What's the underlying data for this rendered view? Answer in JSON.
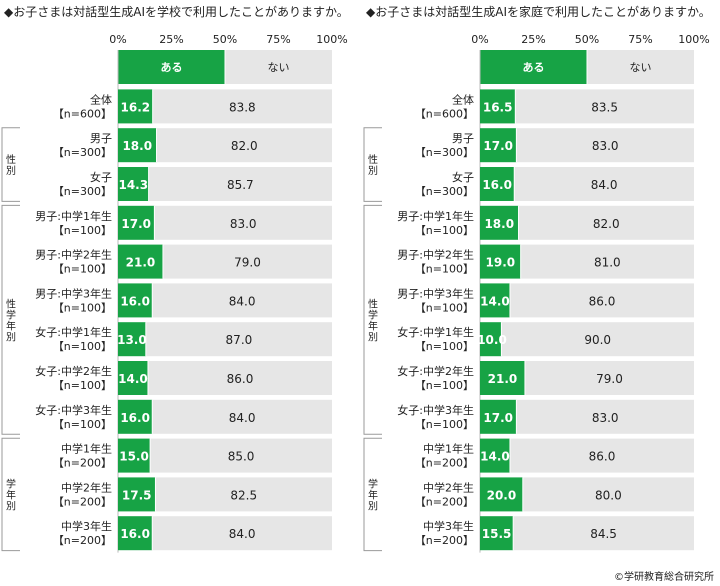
{
  "colors": {
    "aru": "#17a345",
    "nai": "#e6e6e6",
    "divider": "#ffffff",
    "frame": "#9a9a9a"
  },
  "source": "©学研教育総合研究所",
  "chart_data": [
    {
      "type": "bar",
      "stacked": "horizontal-100",
      "title": "◆お子さまは対話型生成AIを学校で利用したことがありますか。",
      "xlim": [
        0,
        100
      ],
      "ticks": [
        "0%",
        "25%",
        "50%",
        "75%",
        "100%"
      ],
      "legend": [
        "ある",
        "ない"
      ],
      "groups": [
        {
          "label": "",
          "rows": [
            0
          ]
        },
        {
          "label": "性別",
          "rows": [
            1,
            2
          ]
        },
        {
          "label": "性学年別",
          "rows": [
            3,
            4,
            5,
            6,
            7,
            8
          ]
        },
        {
          "label": "学年別",
          "rows": [
            9,
            10,
            11
          ]
        }
      ],
      "categories": [
        [
          "全体",
          "【n=600】"
        ],
        [
          "男子",
          "【n=300】"
        ],
        [
          "女子",
          "【n=300】"
        ],
        [
          "男子:中学1年生",
          "【n=100】"
        ],
        [
          "男子:中学2年生",
          "【n=100】"
        ],
        [
          "男子:中学3年生",
          "【n=100】"
        ],
        [
          "女子:中学1年生",
          "【n=100】"
        ],
        [
          "女子:中学2年生",
          "【n=100】"
        ],
        [
          "女子:中学3年生",
          "【n=100】"
        ],
        [
          "中学1年生",
          "【n=200】"
        ],
        [
          "中学2年生",
          "【n=200】"
        ],
        [
          "中学3年生",
          "【n=200】"
        ]
      ],
      "series": [
        {
          "name": "ある",
          "values": [
            16.2,
            18.0,
            14.3,
            17.0,
            21.0,
            16.0,
            13.0,
            14.0,
            16.0,
            15.0,
            17.5,
            16.0
          ]
        },
        {
          "name": "ない",
          "values": [
            83.8,
            82.0,
            85.7,
            83.0,
            79.0,
            84.0,
            87.0,
            86.0,
            84.0,
            85.0,
            82.5,
            84.0
          ]
        }
      ]
    },
    {
      "type": "bar",
      "stacked": "horizontal-100",
      "title": "◆お子さまは対話型生成AIを家庭で利用したことがありますか。",
      "xlim": [
        0,
        100
      ],
      "ticks": [
        "0%",
        "25%",
        "50%",
        "75%",
        "100%"
      ],
      "legend": [
        "ある",
        "ない"
      ],
      "groups": [
        {
          "label": "",
          "rows": [
            0
          ]
        },
        {
          "label": "性別",
          "rows": [
            1,
            2
          ]
        },
        {
          "label": "性学年別",
          "rows": [
            3,
            4,
            5,
            6,
            7,
            8
          ]
        },
        {
          "label": "学年別",
          "rows": [
            9,
            10,
            11
          ]
        }
      ],
      "categories": [
        [
          "全体",
          "【n=600】"
        ],
        [
          "男子",
          "【n=300】"
        ],
        [
          "女子",
          "【n=300】"
        ],
        [
          "男子:中学1年生",
          "【n=100】"
        ],
        [
          "男子:中学2年生",
          "【n=100】"
        ],
        [
          "男子:中学3年生",
          "【n=100】"
        ],
        [
          "女子:中学1年生",
          "【n=100】"
        ],
        [
          "女子:中学2年生",
          "【n=100】"
        ],
        [
          "女子:中学3年生",
          "【n=100】"
        ],
        [
          "中学1年生",
          "【n=200】"
        ],
        [
          "中学2年生",
          "【n=200】"
        ],
        [
          "中学3年生",
          "【n=200】"
        ]
      ],
      "series": [
        {
          "name": "ある",
          "values": [
            16.5,
            17.0,
            16.0,
            18.0,
            19.0,
            14.0,
            10.0,
            21.0,
            17.0,
            14.0,
            20.0,
            15.5
          ]
        },
        {
          "name": "ない",
          "values": [
            83.5,
            83.0,
            84.0,
            82.0,
            81.0,
            86.0,
            90.0,
            79.0,
            83.0,
            86.0,
            80.0,
            84.5
          ]
        }
      ]
    }
  ]
}
